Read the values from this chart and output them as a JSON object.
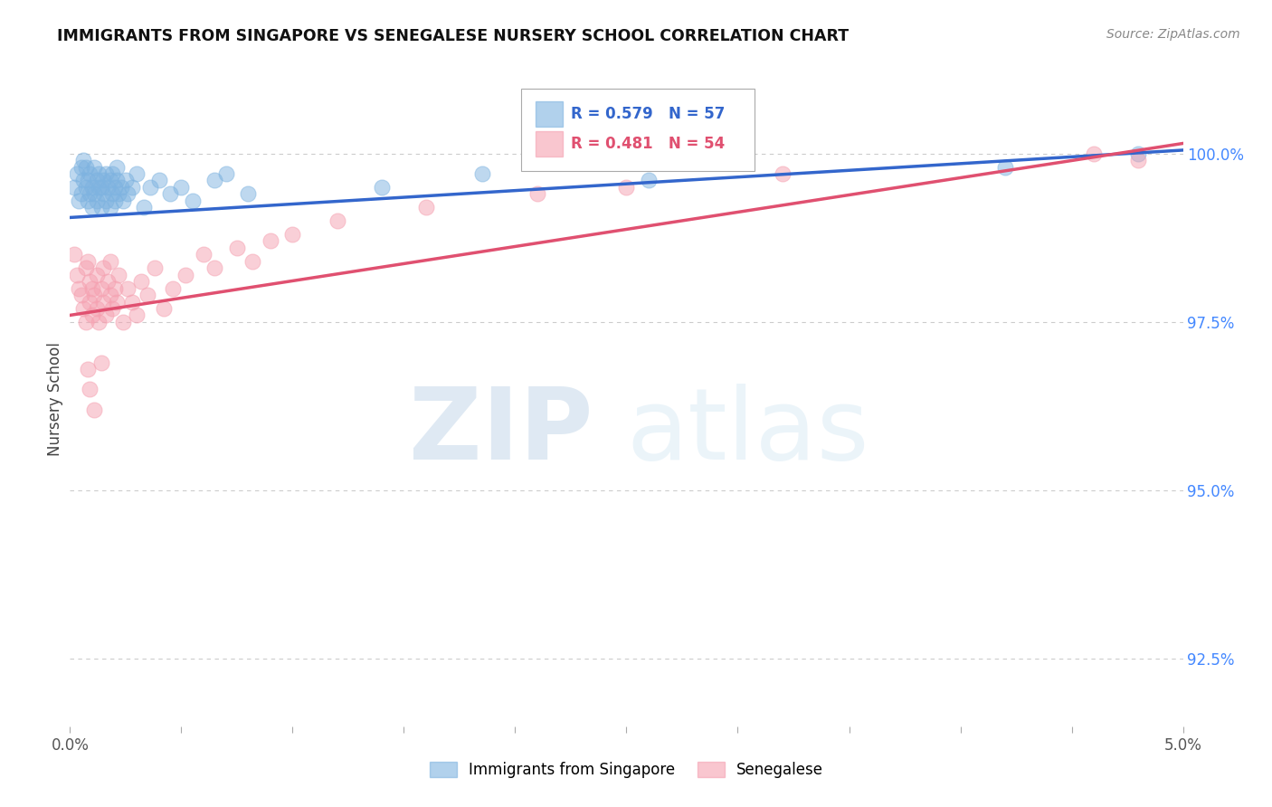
{
  "title": "IMMIGRANTS FROM SINGAPORE VS SENEGALESE NURSERY SCHOOL CORRELATION CHART",
  "source": "Source: ZipAtlas.com",
  "ylabel": "Nursery School",
  "ytick_values": [
    92.5,
    95.0,
    97.5,
    100.0
  ],
  "xlim": [
    0.0,
    5.0
  ],
  "ylim": [
    91.5,
    101.2
  ],
  "legend_blue_label": "Immigrants from Singapore",
  "legend_pink_label": "Senegalese",
  "legend_r_blue": "R = 0.579",
  "legend_n_blue": "N = 57",
  "legend_r_pink": "R = 0.481",
  "legend_n_pink": "N = 54",
  "blue_color": "#7EB3E0",
  "pink_color": "#F5A0B0",
  "blue_line_color": "#3366CC",
  "pink_line_color": "#E05070",
  "right_ytick_color": "#4488FF",
  "background_color": "#ffffff",
  "grid_color": "#cccccc",
  "title_color": "#111111",
  "source_color": "#888888",
  "axis_label_color": "#444444",
  "blue_scatter_x": [
    0.02,
    0.03,
    0.04,
    0.05,
    0.05,
    0.06,
    0.06,
    0.07,
    0.07,
    0.08,
    0.08,
    0.09,
    0.09,
    0.1,
    0.1,
    0.11,
    0.11,
    0.12,
    0.12,
    0.13,
    0.13,
    0.14,
    0.14,
    0.15,
    0.15,
    0.16,
    0.16,
    0.17,
    0.18,
    0.18,
    0.19,
    0.19,
    0.2,
    0.2,
    0.21,
    0.21,
    0.22,
    0.23,
    0.24,
    0.25,
    0.26,
    0.28,
    0.3,
    0.33,
    0.36,
    0.4,
    0.45,
    0.5,
    0.55,
    0.65,
    0.7,
    0.8,
    1.4,
    1.85,
    2.6,
    4.2,
    4.8
  ],
  "blue_scatter_y": [
    99.5,
    99.7,
    99.3,
    99.8,
    99.4,
    99.6,
    99.9,
    99.5,
    99.8,
    99.3,
    99.6,
    99.4,
    99.7,
    99.2,
    99.5,
    99.4,
    99.8,
    99.3,
    99.6,
    99.5,
    99.7,
    99.2,
    99.5,
    99.4,
    99.6,
    99.3,
    99.7,
    99.5,
    99.2,
    99.6,
    99.4,
    99.7,
    99.3,
    99.5,
    99.6,
    99.8,
    99.4,
    99.5,
    99.3,
    99.6,
    99.4,
    99.5,
    99.7,
    99.2,
    99.5,
    99.6,
    99.4,
    99.5,
    99.3,
    99.6,
    99.7,
    99.4,
    99.5,
    99.7,
    99.6,
    99.8,
    100.0
  ],
  "pink_scatter_x": [
    0.02,
    0.03,
    0.04,
    0.05,
    0.06,
    0.07,
    0.07,
    0.08,
    0.09,
    0.09,
    0.1,
    0.1,
    0.11,
    0.12,
    0.12,
    0.13,
    0.14,
    0.15,
    0.15,
    0.16,
    0.17,
    0.18,
    0.18,
    0.19,
    0.2,
    0.21,
    0.22,
    0.24,
    0.26,
    0.28,
    0.3,
    0.32,
    0.35,
    0.38,
    0.42,
    0.46,
    0.52,
    0.6,
    0.65,
    0.75,
    0.82,
    0.9,
    1.0,
    1.2,
    1.6,
    2.1,
    2.5,
    3.2,
    4.6,
    4.8,
    0.08,
    0.09,
    0.11,
    0.14
  ],
  "pink_scatter_y": [
    98.5,
    98.2,
    98.0,
    97.9,
    97.7,
    98.3,
    97.5,
    98.4,
    97.8,
    98.1,
    97.6,
    98.0,
    97.9,
    98.2,
    97.7,
    97.5,
    98.0,
    97.8,
    98.3,
    97.6,
    98.1,
    97.9,
    98.4,
    97.7,
    98.0,
    97.8,
    98.2,
    97.5,
    98.0,
    97.8,
    97.6,
    98.1,
    97.9,
    98.3,
    97.7,
    98.0,
    98.2,
    98.5,
    98.3,
    98.6,
    98.4,
    98.7,
    98.8,
    99.0,
    99.2,
    99.4,
    99.5,
    99.7,
    100.0,
    99.9,
    96.8,
    96.5,
    96.2,
    96.9
  ],
  "blue_trend_x": [
    0.0,
    5.0
  ],
  "blue_trend_y": [
    99.05,
    100.05
  ],
  "pink_trend_x": [
    0.0,
    5.0
  ],
  "pink_trend_y": [
    97.6,
    100.15
  ]
}
